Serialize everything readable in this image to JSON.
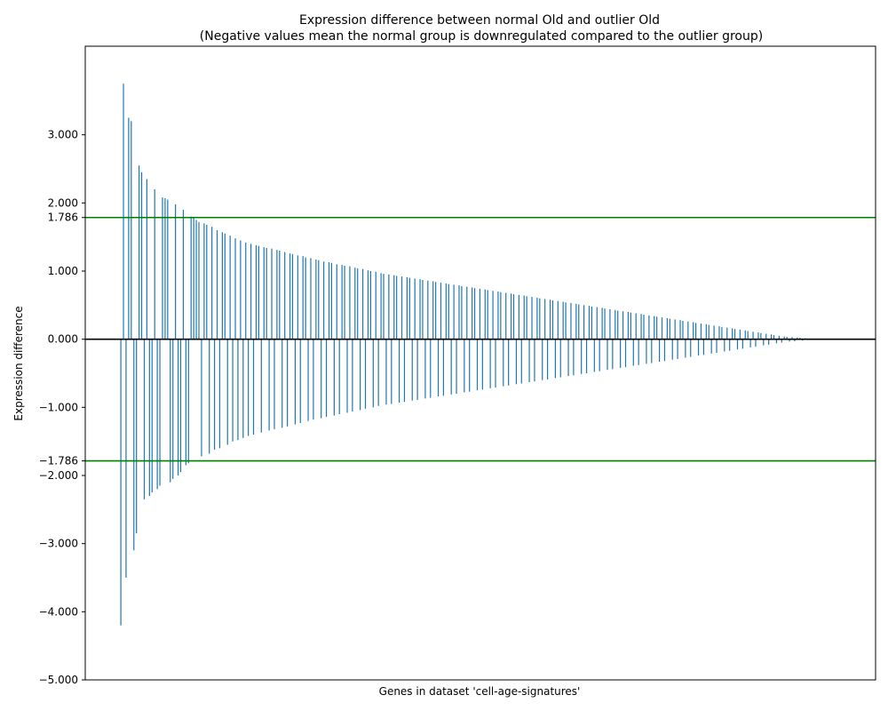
{
  "chart_data": {
    "type": "bar",
    "title": "Expression difference between normal Old and outlier Old",
    "subtitle": "(Negative values mean the normal group is downregulated compared to the outlier group)",
    "xlabel": "Genes in dataset 'cell-age-signatures'",
    "ylabel": "Expression difference",
    "ylim": [
      -5.0,
      4.3
    ],
    "grid": false,
    "yticks": [
      {
        "value": 3.0,
        "label": "3.000"
      },
      {
        "value": 2.0,
        "label": "2.000"
      },
      {
        "value": 1.786,
        "label": "1.786"
      },
      {
        "value": 1.0,
        "label": "1.000"
      },
      {
        "value": 0.0,
        "label": "0.000"
      },
      {
        "value": -1.0,
        "label": "−1.000"
      },
      {
        "value": -1.786,
        "label": "−1.786"
      },
      {
        "value": -2.0,
        "label": "−2.000"
      },
      {
        "value": -3.0,
        "label": "−3.000"
      },
      {
        "value": -4.0,
        "label": "−4.000"
      },
      {
        "value": -5.0,
        "label": "−5.000"
      }
    ],
    "reference_lines": [
      {
        "value": 1.786,
        "color": "#008000"
      },
      {
        "value": -1.786,
        "color": "#008000"
      },
      {
        "value": 0.0,
        "color": "#000000"
      }
    ],
    "bar_color": "#1f77b4",
    "values": [
      -4.2,
      3.75,
      -3.5,
      3.25,
      3.2,
      -3.1,
      -2.85,
      2.55,
      2.45,
      -2.35,
      2.35,
      -2.3,
      -2.25,
      2.2,
      -2.2,
      -2.15,
      2.08,
      2.07,
      2.05,
      -2.1,
      -2.05,
      1.98,
      -2.0,
      -1.95,
      1.9,
      -1.85,
      -1.82,
      1.8,
      1.78,
      1.75,
      1.72,
      -1.72,
      1.7,
      1.68,
      -1.68,
      1.65,
      -1.62,
      1.6,
      -1.6,
      1.57,
      1.55,
      -1.55,
      1.52,
      -1.5,
      1.48,
      -1.48,
      1.45,
      -1.45,
      1.42,
      -1.42,
      1.4,
      -1.4,
      1.38,
      1.37,
      -1.37,
      1.35,
      1.34,
      -1.34,
      1.33,
      -1.32,
      1.31,
      1.3,
      -1.3,
      1.28,
      -1.28,
      1.26,
      1.25,
      -1.25,
      1.23,
      -1.23,
      1.22,
      1.2,
      -1.2,
      1.19,
      -1.18,
      1.17,
      1.16,
      -1.16,
      1.14,
      -1.14,
      1.13,
      1.12,
      -1.12,
      1.1,
      -1.1,
      1.09,
      1.08,
      -1.08,
      1.07,
      -1.06,
      1.05,
      1.04,
      -1.04,
      1.03,
      -1.02,
      1.01,
      1.0,
      -1.0,
      0.99,
      -0.98,
      0.97,
      0.96,
      -0.96,
      0.95,
      -0.95,
      0.94,
      0.93,
      -0.93,
      0.92,
      -0.92,
      0.91,
      0.9,
      -0.9,
      0.89,
      -0.89,
      0.88,
      0.87,
      -0.87,
      0.86,
      -0.86,
      0.85,
      0.84,
      -0.84,
      0.83,
      -0.83,
      0.82,
      0.81,
      -0.81,
      0.8,
      -0.8,
      0.79,
      0.78,
      -0.78,
      0.77,
      -0.77,
      0.76,
      0.75,
      -0.75,
      0.74,
      -0.74,
      0.73,
      0.72,
      -0.72,
      0.71,
      -0.71,
      0.7,
      0.69,
      -0.69,
      0.68,
      -0.68,
      0.67,
      0.66,
      -0.66,
      0.65,
      -0.65,
      0.64,
      0.63,
      -0.63,
      0.62,
      -0.62,
      0.61,
      0.6,
      -0.6,
      0.59,
      -0.59,
      0.58,
      0.57,
      -0.57,
      0.56,
      -0.56,
      0.55,
      0.54,
      -0.54,
      0.53,
      -0.53,
      0.52,
      0.51,
      -0.51,
      0.5,
      -0.5,
      0.49,
      0.48,
      -0.48,
      0.47,
      -0.47,
      0.46,
      0.45,
      -0.45,
      0.44,
      -0.44,
      0.43,
      0.42,
      -0.42,
      0.41,
      -0.41,
      0.4,
      0.39,
      -0.39,
      0.38,
      -0.38,
      0.37,
      0.36,
      -0.36,
      0.35,
      -0.35,
      0.34,
      0.33,
      -0.33,
      0.32,
      -0.32,
      0.31,
      0.3,
      -0.3,
      0.29,
      -0.29,
      0.28,
      0.27,
      -0.27,
      0.26,
      -0.26,
      0.25,
      0.24,
      -0.24,
      0.23,
      -0.23,
      0.22,
      0.21,
      -0.21,
      0.2,
      -0.2,
      0.19,
      0.18,
      -0.18,
      0.17,
      -0.17,
      0.16,
      0.15,
      -0.15,
      0.14,
      -0.14,
      0.13,
      0.12,
      -0.12,
      0.11,
      -0.11,
      0.1,
      0.09,
      -0.09,
      0.08,
      -0.08,
      0.07,
      0.06,
      -0.06,
      0.05,
      -0.05,
      0.04,
      0.035,
      -0.035,
      0.03,
      -0.03,
      0.025,
      0.02,
      -0.02,
      0.015,
      0.01,
      -0.01,
      0.008,
      0.006,
      -0.005,
      0.004,
      0.003,
      0.002
    ]
  }
}
